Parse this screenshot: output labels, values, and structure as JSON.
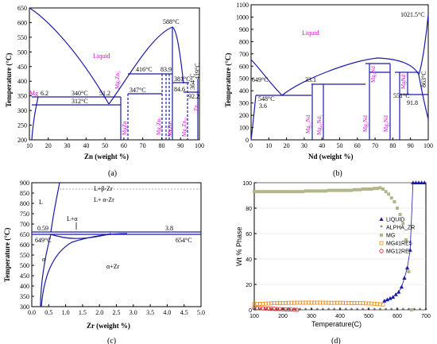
{
  "chart_data": [
    {
      "panel": "(a)",
      "type": "line",
      "xlabel": "Zn (weight %)",
      "ylabel": "Temperature (°C)",
      "xlim": [
        10,
        100
      ],
      "ylim": [
        200,
        650
      ],
      "xticks": [
        10,
        20,
        30,
        40,
        50,
        60,
        70,
        80,
        90,
        100
      ],
      "yticks": [
        200,
        250,
        300,
        350,
        400,
        450,
        500,
        550,
        600,
        650
      ],
      "liquid_label": "Liquid",
      "liquidus_left": {
        "x": [
          10,
          20,
          30,
          40,
          50,
          57.5
        ],
        "y": [
          650,
          580,
          500,
          420,
          370,
          340
        ]
      },
      "liquidus_right": {
        "x": [
          57.5,
          65,
          75,
          85,
          88
        ],
        "y": [
          340,
          420,
          520,
          588,
          560
        ]
      },
      "annotations": [
        "588°C",
        "416°C",
        "83.9",
        "381°C",
        "84.6",
        "364°C",
        "92.2",
        "419°C",
        "340°C",
        "51.2",
        "347°C",
        "312°C",
        "6.2"
      ],
      "phase_labels": [
        "Mg",
        "Mg₇Zn₃",
        "MgZn",
        "Mg₂Zn₃",
        "MgZn₂",
        "Mg₂Zn₁₁",
        "Zn"
      ]
    },
    {
      "panel": "(b)",
      "type": "line",
      "xlabel": "Nd (weight %)",
      "ylabel": "Temperature (°C)",
      "xlim": [
        0,
        100
      ],
      "ylim": [
        0,
        1100
      ],
      "xticks": [
        0,
        10,
        20,
        30,
        40,
        50,
        60,
        70,
        80,
        90,
        100
      ],
      "yticks": [
        0,
        100,
        200,
        300,
        400,
        500,
        600,
        700,
        800,
        900,
        1000,
        1100
      ],
      "liquid_label": "Liquid",
      "annotations": [
        "1021.5°C",
        "649°C",
        "548°C",
        "3.6",
        "33.1",
        "551°C",
        "91.8",
        "863°C"
      ],
      "phase_labels": [
        "Mg₁₂Nd",
        "Mg₄₁Nd₅",
        "Mg₃Nd",
        "Mg₂Nd",
        "MgNd"
      ]
    },
    {
      "panel": "(c)",
      "type": "line",
      "xlabel": "Zr (weight %)",
      "ylabel": "Temperature (°C)",
      "xlim": [
        0.0,
        5.0
      ],
      "ylim": [
        300,
        900
      ],
      "xticks": [
        "0.0",
        "0.5",
        "1.0",
        "1.5",
        "2.0",
        "2.5",
        "3.0",
        "3.5",
        "4.0",
        "4.5",
        "5.0"
      ],
      "yticks": [
        300,
        350,
        400,
        450,
        500,
        550,
        600,
        650,
        700,
        750,
        800,
        850,
        900
      ],
      "regions": [
        "L+β-Zr",
        "L+ α-Zr",
        "L",
        "L+α",
        "α",
        "α+Zr"
      ],
      "annotations": [
        "0.59",
        "3.8",
        "649°C",
        "654°C"
      ]
    },
    {
      "panel": "(d)",
      "type": "scatter",
      "xlabel": "Temperature(C)",
      "ylabel": "Wt % Phase",
      "xlim": [
        100,
        700
      ],
      "ylim": [
        0,
        100
      ],
      "xticks": [
        100,
        200,
        300,
        400,
        500,
        600,
        700
      ],
      "yticks": [
        0,
        20,
        40,
        60,
        80,
        100
      ],
      "legend_position": "right",
      "series": [
        {
          "name": "LIQUID",
          "color": "#1a1aa6",
          "marker": "triangle",
          "x": [
            555,
            565,
            575,
            585,
            595,
            605,
            615,
            625,
            635,
            645,
            655,
            665,
            675,
            685,
            695
          ],
          "y": [
            7,
            8,
            9,
            10,
            12,
            14,
            18,
            25,
            33,
            47,
            100,
            100,
            100,
            100,
            100
          ]
        },
        {
          "name": "ALPHA_ZR",
          "color": "#000000",
          "marker": "star",
          "x": [
            100,
            120,
            140,
            160,
            180,
            200,
            220,
            240,
            260,
            280,
            300,
            320,
            340,
            360,
            380,
            400,
            420,
            440,
            460,
            480,
            500,
            520,
            540,
            560,
            580,
            600,
            620,
            640,
            660,
            680,
            700
          ],
          "y": [
            0,
            0,
            0,
            0,
            0,
            0,
            0,
            0,
            0,
            0,
            0,
            0,
            0,
            0,
            0,
            0,
            0,
            0,
            0,
            0,
            0,
            0,
            0,
            0,
            0,
            0,
            0,
            0,
            0,
            0,
            0
          ]
        },
        {
          "name": "MG",
          "color": "#b5b58a",
          "marker": "square",
          "x": [
            100,
            110,
            120,
            130,
            140,
            150,
            160,
            170,
            180,
            190,
            200,
            210,
            220,
            230,
            240,
            250,
            260,
            270,
            280,
            290,
            300,
            310,
            320,
            330,
            340,
            350,
            360,
            370,
            380,
            390,
            400,
            410,
            420,
            430,
            440,
            450,
            460,
            470,
            480,
            490,
            500,
            510,
            520,
            530,
            540,
            550,
            560,
            570,
            580,
            590,
            600,
            610,
            620,
            630,
            640,
            650
          ],
          "y": [
            93,
            93,
            93,
            93,
            93,
            93,
            93,
            93,
            93,
            93,
            93,
            93,
            93,
            93,
            93,
            93,
            93,
            93,
            93.5,
            93.5,
            93.5,
            93.5,
            93.5,
            93.5,
            93.5,
            93.5,
            94,
            94,
            94,
            94,
            94,
            94,
            94,
            94,
            94,
            94.5,
            94.5,
            94.5,
            95,
            95,
            95,
            95,
            95.5,
            95.5,
            96,
            95,
            93,
            91,
            88,
            85,
            80,
            75,
            68,
            55,
            30,
            0
          ]
        },
        {
          "name": "MG41RE5",
          "color": "#f08c1a",
          "marker": "square-open",
          "x": [
            100,
            110,
            120,
            130,
            140,
            150,
            160,
            170,
            180,
            190,
            200,
            210,
            220,
            230,
            240,
            250,
            260,
            270,
            280,
            290,
            300,
            310,
            320,
            330,
            340,
            350,
            360,
            370,
            380,
            390,
            400,
            410,
            420,
            430,
            440,
            450,
            460,
            470,
            480,
            490,
            500,
            510,
            520,
            530,
            540,
            550
          ],
          "y": [
            4.5,
            4.6,
            4.7,
            4.8,
            4.9,
            5,
            5.1,
            5.2,
            5.3,
            5.3,
            5.4,
            5.4,
            5.5,
            5.5,
            5.5,
            5.6,
            5.6,
            5.6,
            5.6,
            5.6,
            5.6,
            5.6,
            5.6,
            5.6,
            5.6,
            5.6,
            5.5,
            5.5,
            5.5,
            5.5,
            5.5,
            5.5,
            5.4,
            5.4,
            5.4,
            5.3,
            5.3,
            5.2,
            5.2,
            5.1,
            5,
            4.9,
            4.8,
            4.6,
            4.4,
            4.2
          ]
        },
        {
          "name": "MG12RE",
          "color": "#e02020",
          "marker": "circle-open",
          "x": [
            100,
            110,
            120,
            130,
            140,
            150,
            160,
            170,
            180,
            190,
            200,
            210,
            220,
            230,
            240,
            250
          ],
          "y": [
            1.5,
            1.4,
            1.3,
            1.2,
            1.1,
            1,
            0.9,
            0.8,
            0.7,
            0.6,
            0.5,
            0.4,
            0.3,
            0.2,
            0.1,
            0
          ]
        }
      ]
    }
  ]
}
